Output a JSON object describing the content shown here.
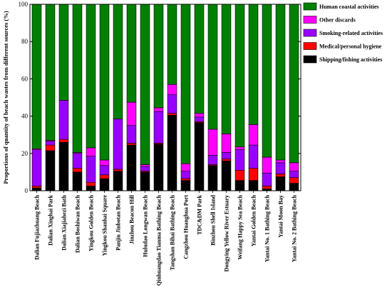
{
  "chart_data": {
    "type": "bar",
    "stacked": true,
    "ylabel": "Proportions of quantity of beach wastes from different sources (%)",
    "ylim": [
      0,
      100
    ],
    "yticks": [
      "0",
      "20",
      "40",
      "60",
      "80",
      "100"
    ],
    "legend_position": "top-right",
    "categories": [
      "Dalian Fujiazhuang Beach",
      "Dalian Xinghai Park",
      "Dalian Xiajiahezi Bath",
      "Dalian Boshiwan Beach",
      "Yingkou Golden Beach",
      "Yingkou Shanhai Square",
      "Panjin Jinbotan Beach",
      "Jinzhou Beacon Hill",
      "Huludao Longwan Beach",
      "Qinhuangdao Tianma Bathing Beach",
      "Tangshan Bihai Bathing Beach",
      "Cangzhou Huanghua Port",
      "TDC&DM Park",
      "Binzhou Shell Island",
      "Dongying Yellow River Estuary",
      "Weifang Happy Sea Beach",
      "Yantai Golden Beach",
      "Yantai No. 1 Bathing Beach",
      "Yantai Moon Bay",
      "Yantai No. 2 Bathing Beach"
    ],
    "series": [
      {
        "name": "Shipping/fishing activities",
        "color": "#000000",
        "values": [
          1.5,
          21.5,
          26,
          10,
          2.5,
          6.5,
          10.5,
          24.5,
          10,
          25,
          40.5,
          5.5,
          36.5,
          13.5,
          16,
          5.5,
          5.5,
          1,
          7.5,
          4
        ]
      },
      {
        "name": "Medical/personal hygiene",
        "color": "#ff0000",
        "values": [
          1,
          3,
          1.5,
          2,
          2,
          2,
          1,
          1,
          0.5,
          0.5,
          1,
          1,
          0.5,
          0.5,
          1,
          5.5,
          6.5,
          1.5,
          1.5,
          3
        ]
      },
      {
        "name": "Smoking-related activities",
        "color": "#9900ff",
        "values": [
          19.5,
          2,
          21,
          8,
          14,
          5,
          27,
          9.5,
          2.5,
          17,
          10,
          4,
          2.5,
          5,
          3.5,
          11,
          12.5,
          7,
          6,
          3.5
        ]
      },
      {
        "name": "Other discards",
        "color": "#ff00ff",
        "values": [
          0.5,
          0.5,
          0,
          0.5,
          4.5,
          3,
          0,
          12.5,
          1,
          2,
          5.5,
          4,
          2,
          14,
          10,
          1.5,
          11,
          8.5,
          1.5,
          4.5
        ]
      },
      {
        "name": "Human coastal activities",
        "color": "#008000",
        "values": [
          77.5,
          73,
          51.5,
          79.5,
          77,
          83.5,
          61.5,
          52.5,
          86,
          55.5,
          43,
          85.5,
          58.5,
          67,
          69.5,
          76.5,
          64.5,
          82,
          83.5,
          85
        ]
      }
    ],
    "legend_order": [
      "Human coastal activities",
      "Other discards",
      "Smoking-related activities",
      "Medical/personal hygiene",
      "Shipping/fishing activities"
    ]
  }
}
